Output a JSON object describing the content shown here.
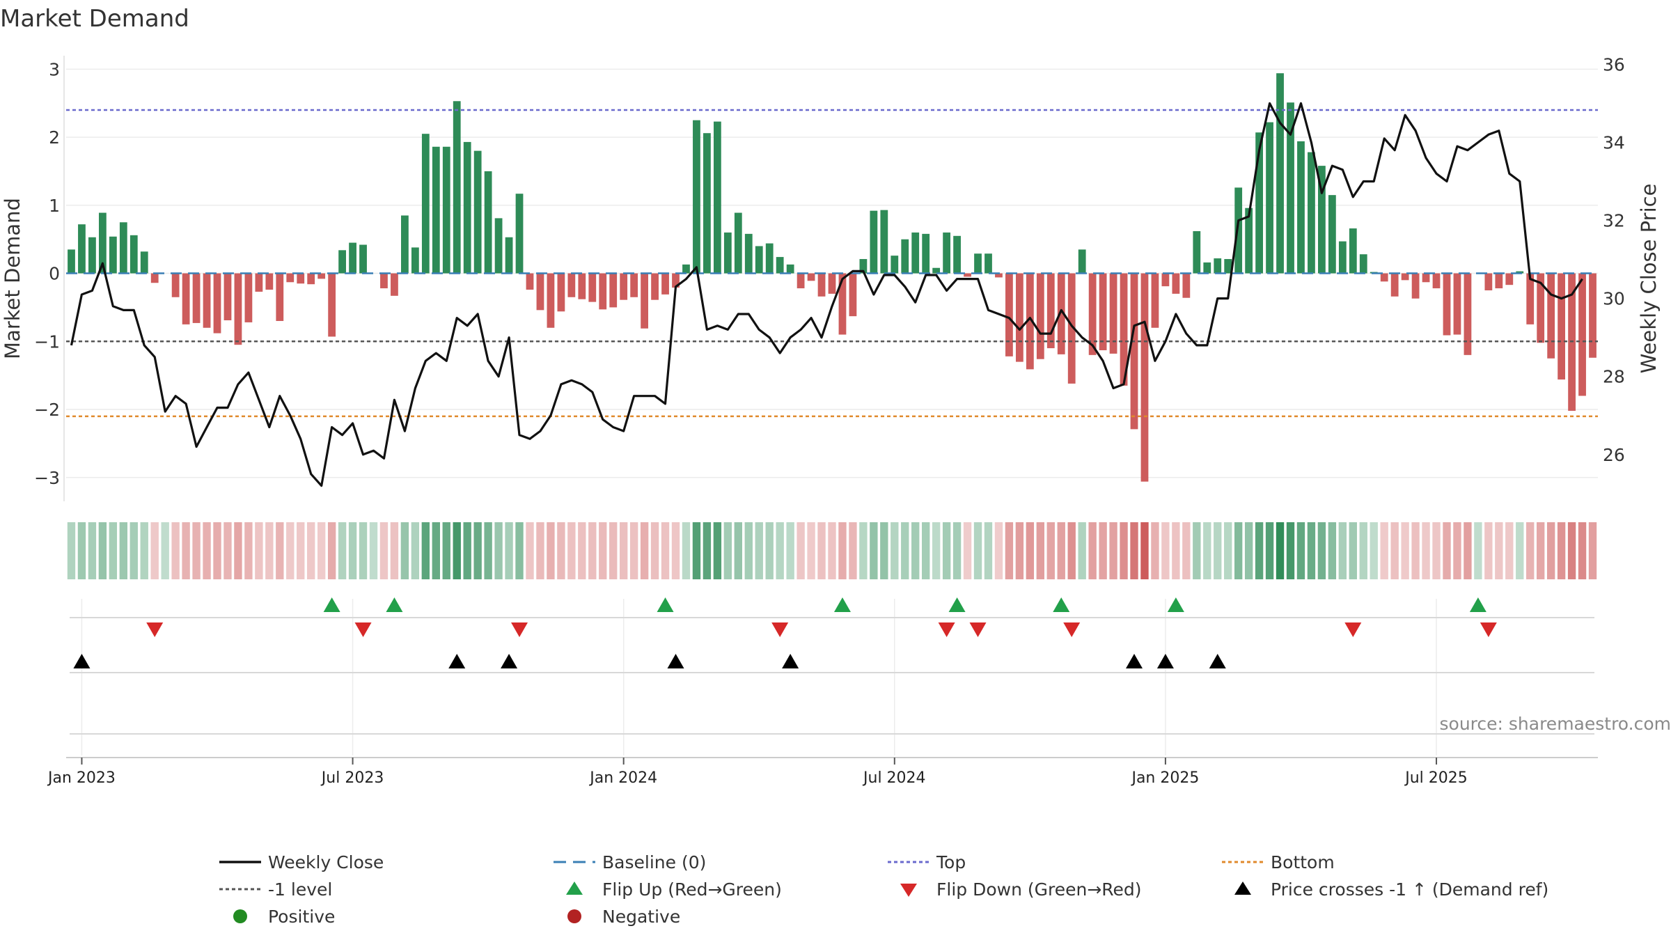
{
  "chart_data": {
    "type": "bar",
    "title": "Market Demand",
    "ylabel_left": "Market Demand",
    "ylabel_right": "Weekly Close Price",
    "ylim_left": [
      -3.35,
      3.3
    ],
    "ylim_right": [
      24.8,
      36.4
    ],
    "yticks_left": [
      3,
      2,
      1,
      0,
      -1,
      -2,
      -3
    ],
    "yticks_left_labels": [
      "3",
      "2",
      "1",
      "0",
      "−1",
      "−2",
      "−3"
    ],
    "yticks_right": [
      36,
      34,
      32,
      30,
      28,
      26
    ],
    "xtick_labels": [
      "Jan 2023",
      "Jul 2023",
      "Jan 2024",
      "Jul 2024",
      "Jan 2025",
      "Jul 2025"
    ],
    "xtick_week_index": [
      1,
      27,
      53,
      79,
      105,
      131
    ],
    "first_week": "2022-12-25",
    "levels": {
      "baseline": 0,
      "top": 2.4,
      "minus_one": -1,
      "bottom": -2.1
    },
    "colors": {
      "positive": "#2e8b57",
      "negative": "#cd5c5c",
      "price": "#111111",
      "top": "#6a6acd",
      "bottom": "#e08a2c",
      "minus_one": "#555555",
      "baseline": "#3a7fb5",
      "flip_up": "#22a04a",
      "flip_down": "#d62828",
      "cross": "#000000",
      "legend_positive": "#228b22",
      "legend_negative": "#b22222"
    },
    "series": [
      {
        "name": "Market Demand",
        "values": [
          0.35,
          0.72,
          0.53,
          0.89,
          0.54,
          0.75,
          0.56,
          0.32,
          -0.14,
          0.0,
          -0.35,
          -0.75,
          -0.73,
          -0.8,
          -0.88,
          -0.69,
          -1.05,
          -0.72,
          -0.27,
          -0.24,
          -0.7,
          -0.13,
          -0.15,
          -0.16,
          -0.08,
          -0.93,
          0.34,
          0.45,
          0.42,
          0.0,
          -0.22,
          -0.33,
          0.85,
          0.38,
          2.05,
          1.86,
          1.86,
          2.53,
          1.93,
          1.8,
          1.5,
          0.81,
          0.53,
          1.17,
          -0.24,
          -0.54,
          -0.8,
          -0.56,
          -0.35,
          -0.38,
          -0.42,
          -0.53,
          -0.5,
          -0.39,
          -0.35,
          -0.81,
          -0.39,
          -0.31,
          -0.21,
          0.13,
          2.25,
          2.06,
          2.23,
          0.6,
          0.89,
          0.58,
          0.4,
          0.44,
          0.24,
          0.13,
          -0.22,
          -0.11,
          -0.34,
          -0.3,
          -0.9,
          -0.63,
          0.21,
          0.92,
          0.93,
          0.26,
          0.5,
          0.6,
          0.58,
          0.08,
          0.6,
          0.55,
          -0.05,
          0.29,
          0.29,
          -0.06,
          -1.22,
          -1.3,
          -1.41,
          -1.26,
          -1.1,
          -1.19,
          -1.62,
          0.35,
          -1.2,
          -1.13,
          -1.18,
          -1.65,
          -2.29,
          -3.06,
          -0.8,
          -0.19,
          -0.3,
          -0.36,
          0.62,
          0.16,
          0.22,
          0.21,
          1.26,
          0.96,
          2.07,
          2.22,
          2.94,
          2.51,
          1.94,
          1.78,
          1.58,
          1.15,
          0.47,
          0.66,
          0.28,
          0.02,
          -0.12,
          -0.34,
          -0.1,
          -0.37,
          -0.13,
          -0.22,
          -0.91,
          -0.9,
          -1.2,
          0.0,
          -0.25,
          -0.22,
          -0.17,
          0.03,
          -0.75,
          -1.02,
          -1.25,
          -1.56,
          -2.02,
          -1.8,
          -1.24
        ]
      },
      {
        "name": "Weekly Close",
        "values": [
          28.8,
          30.1,
          30.2,
          30.9,
          29.8,
          29.7,
          29.7,
          28.8,
          28.5,
          27.1,
          27.5,
          27.3,
          26.2,
          26.7,
          27.2,
          27.2,
          27.8,
          28.1,
          27.4,
          26.7,
          27.5,
          27.0,
          26.4,
          25.5,
          25.2,
          26.7,
          26.5,
          26.8,
          26.0,
          26.1,
          25.9,
          27.4,
          26.6,
          27.7,
          28.4,
          28.6,
          28.4,
          29.5,
          29.3,
          29.6,
          28.4,
          28.0,
          29.0,
          26.5,
          26.4,
          26.6,
          27.0,
          27.8,
          27.9,
          27.8,
          27.6,
          26.9,
          26.7,
          26.6,
          27.5,
          27.5,
          27.5,
          27.3,
          30.3,
          30.5,
          30.8,
          29.2,
          29.3,
          29.2,
          29.6,
          29.6,
          29.2,
          29.0,
          28.6,
          29.0,
          29.2,
          29.5,
          29.0,
          29.8,
          30.5,
          30.7,
          30.7,
          30.1,
          30.6,
          30.6,
          30.3,
          29.9,
          30.6,
          30.6,
          30.2,
          30.5,
          30.5,
          30.5,
          29.7,
          29.6,
          29.5,
          29.2,
          29.5,
          29.1,
          29.1,
          29.7,
          29.3,
          29.0,
          28.8,
          28.4,
          27.7,
          27.8,
          29.3,
          29.4,
          28.4,
          28.9,
          29.6,
          29.1,
          28.8,
          28.8,
          30.0,
          30.0,
          32.0,
          32.1,
          33.8,
          35.0,
          34.5,
          34.2,
          35.0,
          34.0,
          32.7,
          33.4,
          33.3,
          32.6,
          33.0,
          33.0,
          34.1,
          33.8,
          34.7,
          34.3,
          33.6,
          33.2,
          33.0,
          33.9,
          33.8,
          34.0,
          34.2,
          34.3,
          33.2,
          33.0,
          30.5,
          30.4,
          30.1,
          30.0,
          30.1,
          30.5
        ]
      }
    ],
    "flip_up_weeks": [
      25,
      31,
      57,
      74,
      85,
      95,
      106,
      135
    ],
    "flip_down_weeks": [
      8,
      28,
      43,
      68,
      84,
      87,
      96,
      123,
      136
    ],
    "cross_weeks": [
      1,
      37,
      42,
      58,
      69,
      102,
      105,
      110
    ],
    "source": "source: sharemaestro.com",
    "legend": [
      {
        "label": "Weekly Close",
        "kind": "line"
      },
      {
        "label": "Baseline (0)",
        "kind": "dash"
      },
      {
        "label": "Top",
        "kind": "dot-purple"
      },
      {
        "label": "Bottom",
        "kind": "dot-orange"
      },
      {
        "label": "-1 level",
        "kind": "dot-grey"
      },
      {
        "label": "Flip Up (Red→Green)",
        "kind": "tri-up-green"
      },
      {
        "label": "Flip Down (Green→Red)",
        "kind": "tri-down-red"
      },
      {
        "label": "Price crosses -1 ↑ (Demand ref)",
        "kind": "tri-up-black"
      },
      {
        "label": "Positive",
        "kind": "dot-green"
      },
      {
        "label": "Negative",
        "kind": "dot-red"
      }
    ]
  }
}
